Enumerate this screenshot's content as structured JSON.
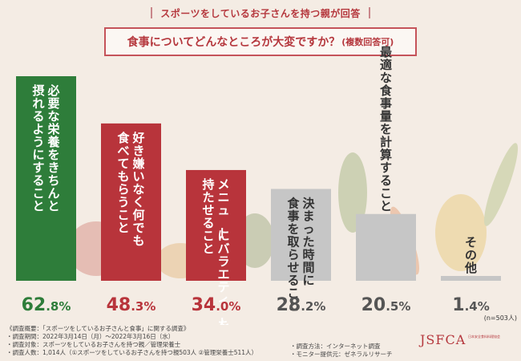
{
  "header": "スポーツをしているお子さんを持つ親が回答",
  "question": {
    "main": "食事についてどんなところが大変ですか？",
    "sub": "(複数回答可)"
  },
  "n_note": "(n=503人)",
  "chart_data": {
    "type": "bar",
    "title": "食事についてどんなところが大変ですか？(複数回答可)",
    "categories": [
      [
        "必要な栄養をきちんと",
        "摂れるようにすること"
      ],
      [
        "好き嫌いなく何でも",
        "食べてもらうこと"
      ],
      [
        "メニューにバラエティーを",
        "持たせること"
      ],
      [
        "決まった時間に",
        "食事を取らせること"
      ],
      [
        "最適な食事量を計算すること"
      ],
      [
        "その他"
      ]
    ],
    "values": [
      62.8,
      48.3,
      34.0,
      28.2,
      20.5,
      1.4
    ],
    "value_labels": [
      {
        "int": "62",
        "dec": ".8%"
      },
      {
        "int": "48",
        "dec": ".3%"
      },
      {
        "int": "34",
        "dec": ".0%"
      },
      {
        "int": "28",
        "dec": ".2%"
      },
      {
        "int": "20",
        "dec": ".5%"
      },
      {
        "int": "1",
        "dec": ".4%"
      }
    ],
    "colors": [
      "#2e7d3a",
      "#b8343b",
      "#b8343b",
      "#c6c6c6",
      "#c6c6c6",
      "#c6c6c6"
    ],
    "label_colors": [
      "#ffffff",
      "#ffffff",
      "#ffffff",
      "#333333",
      "#333333",
      "#333333"
    ],
    "value_label_colors": [
      "#2e7d3a",
      "#b8343b",
      "#b8343b",
      "#555555",
      "#555555",
      "#555555"
    ],
    "ylim": [
      0,
      62.8
    ],
    "grid": false,
    "legend": "none"
  },
  "footer": {
    "lines": [
      "《調査概要：「スポーツをしているお子さんと食事」に関する調査》",
      "・調査期間：2022年3月14日（月）～2022年3月16日（水）",
      "・調査対象：スポーツをしているお子さんを持つ親／管理栄養士",
      "・調査人数：1,014人（①スポーツをしているお子さんを持つ親503人 ②管理栄養士511人）"
    ],
    "right_lines": [
      "・調査方法：インターネット調査",
      "・モニター提供元：ゼネラルリサーチ"
    ],
    "logo": "JSFCA",
    "logo_sub": "日本安全食料料理協会"
  }
}
